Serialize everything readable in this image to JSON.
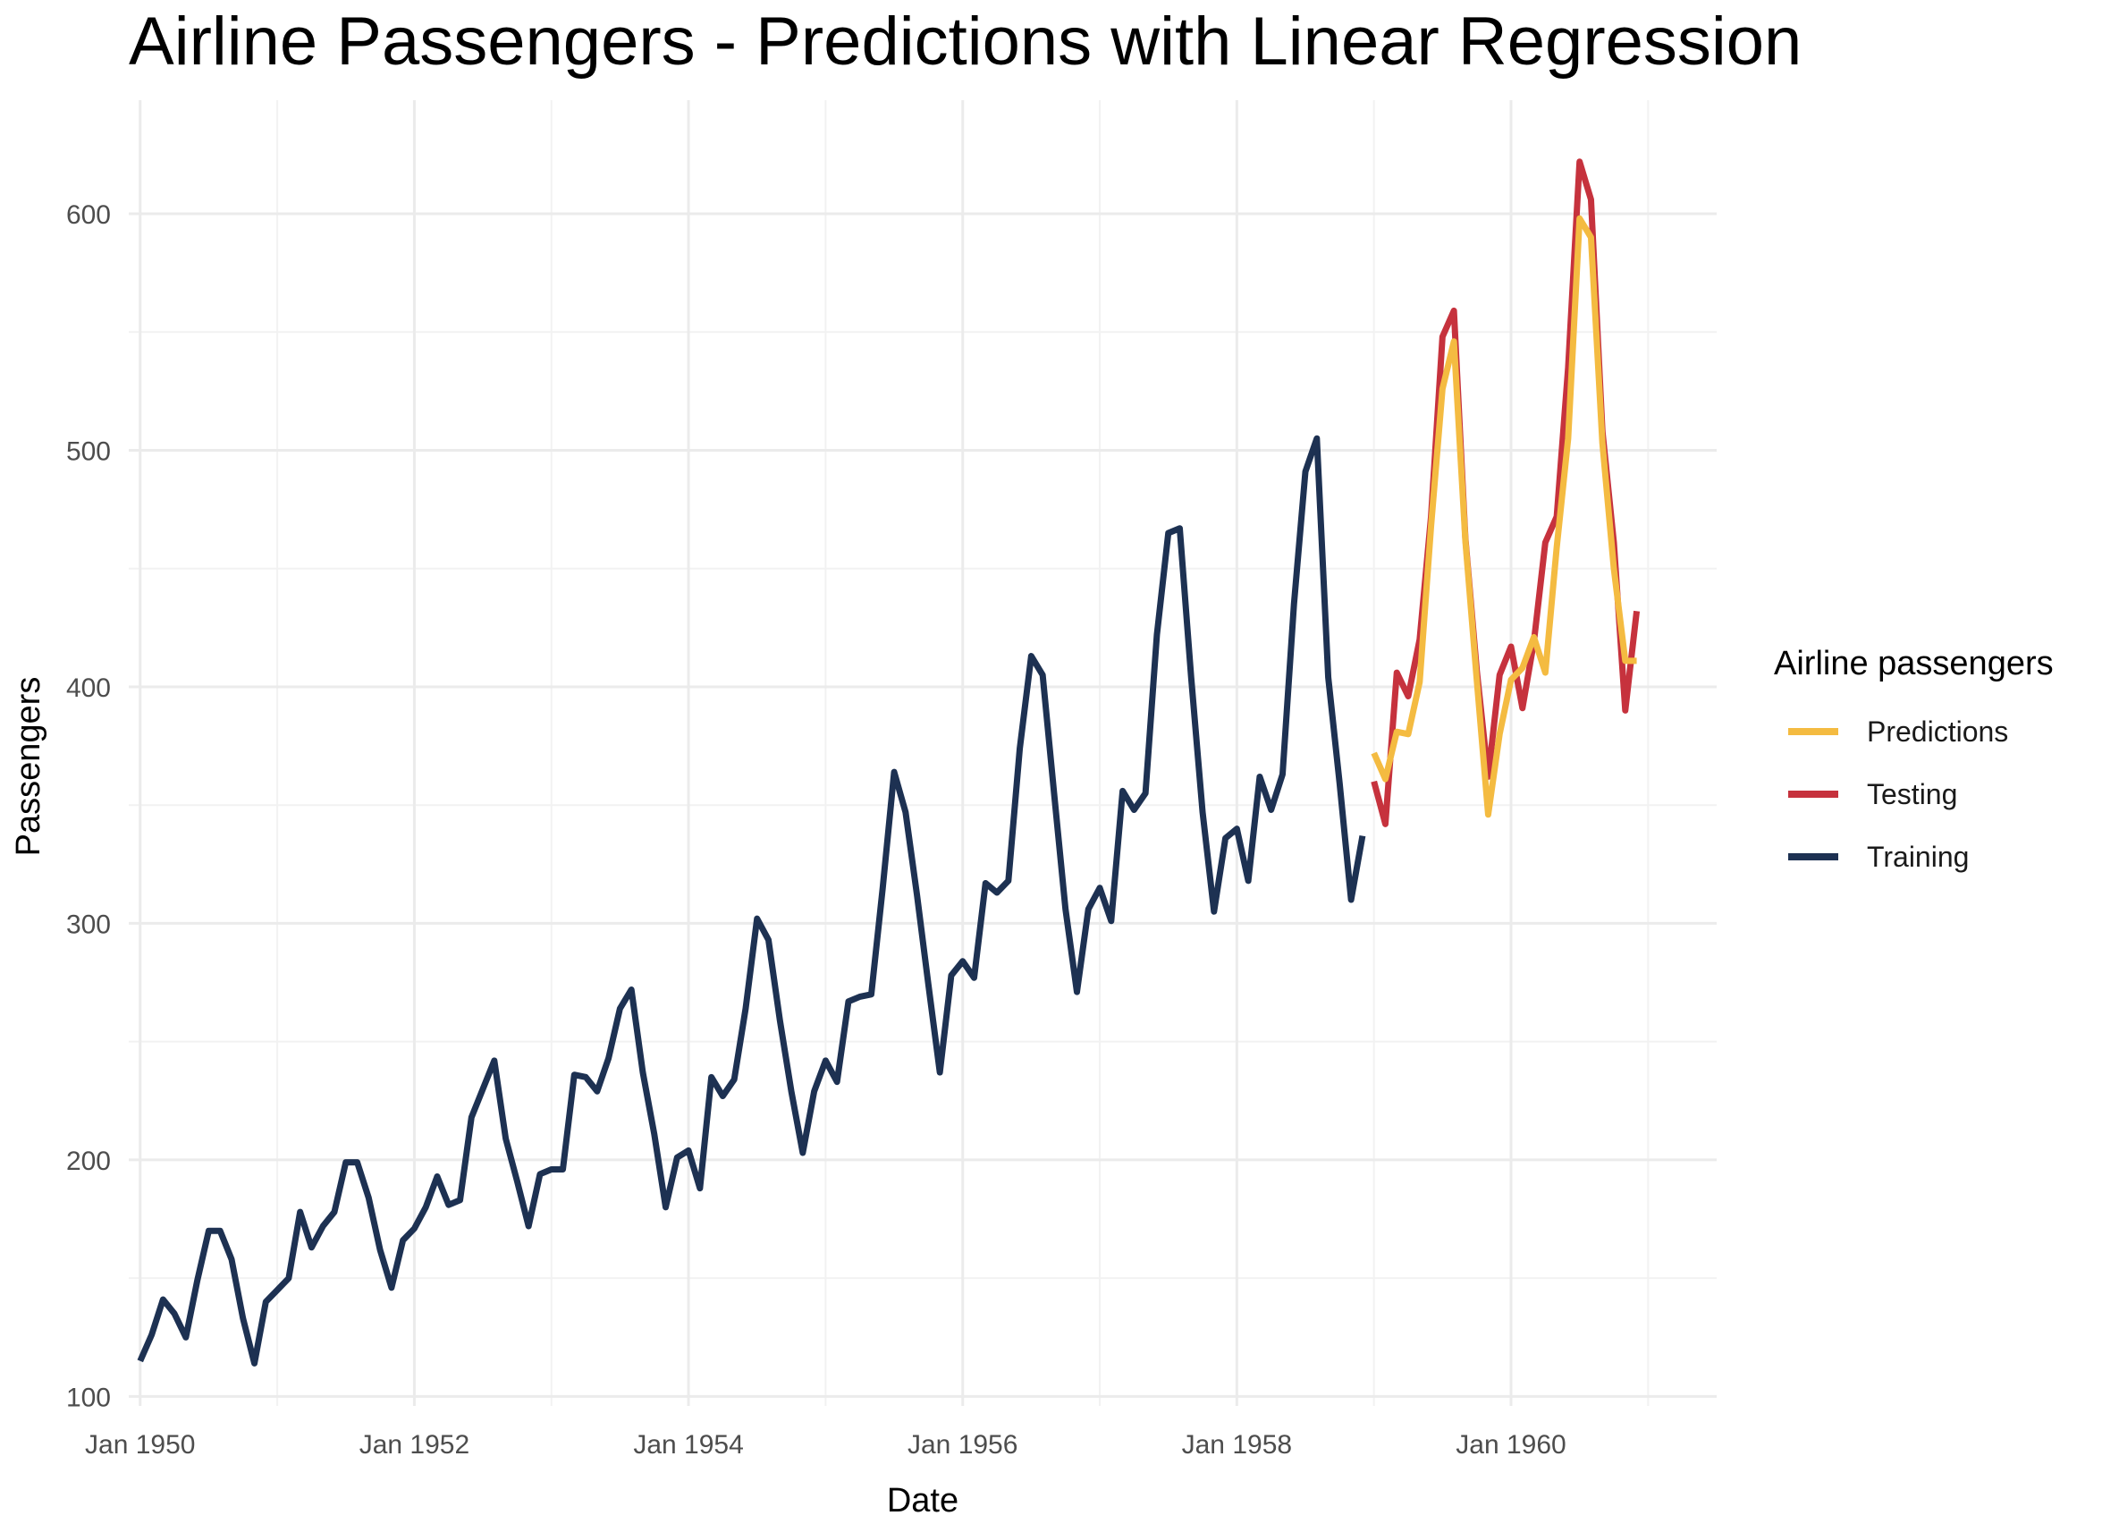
{
  "colors": {
    "Predictions": "#f4bb41",
    "Testing": "#c6323d",
    "Training": "#1d3152",
    "grid": "#ebebeb"
  },
  "chart_data": {
    "type": "line",
    "title": "Airline Passengers - Predictions with Linear Regression",
    "xlabel": "Date",
    "ylabel": "Passengers",
    "xlim": [
      "1949-12",
      "1961-07"
    ],
    "ylim": [
      96,
      648
    ],
    "x_ticks": [
      {
        "date": "1950-01",
        "label": "Jan 1950"
      },
      {
        "date": "1952-01",
        "label": "Jan 1952"
      },
      {
        "date": "1954-01",
        "label": "Jan 1954"
      },
      {
        "date": "1956-01",
        "label": "Jan 1956"
      },
      {
        "date": "1958-01",
        "label": "Jan 1958"
      },
      {
        "date": "1960-01",
        "label": "Jan 1960"
      }
    ],
    "x_minor_ticks": [
      "1951-01",
      "1953-01",
      "1955-01",
      "1957-01",
      "1959-01",
      "1961-01"
    ],
    "y_ticks": [
      100,
      200,
      300,
      400,
      500,
      600
    ],
    "y_minor_ticks": [
      150,
      250,
      350,
      450,
      550
    ],
    "grid": true,
    "legend": {
      "title": "Airline passengers",
      "position": "right",
      "entries": [
        "Predictions",
        "Testing",
        "Training"
      ]
    },
    "series": [
      {
        "name": "Training",
        "start": "1950-01",
        "frequency": "monthly",
        "values": [
          115,
          126,
          141,
          135,
          125,
          149,
          170,
          170,
          158,
          133,
          114,
          140,
          145,
          150,
          178,
          163,
          172,
          178,
          199,
          199,
          184,
          162,
          146,
          166,
          171,
          180,
          193,
          181,
          183,
          218,
          230,
          242,
          209,
          191,
          172,
          194,
          196,
          196,
          236,
          235,
          229,
          243,
          264,
          272,
          237,
          211,
          180,
          201,
          204,
          188,
          235,
          227,
          234,
          264,
          302,
          293,
          259,
          229,
          203,
          229,
          242,
          233,
          267,
          269,
          270,
          315,
          364,
          347,
          312,
          274,
          237,
          278,
          284,
          277,
          317,
          313,
          318,
          374,
          413,
          405,
          355,
          306,
          271,
          306,
          315,
          301,
          356,
          348,
          355,
          422,
          465,
          467,
          404,
          347,
          305,
          336,
          340,
          318,
          362,
          348,
          363,
          435,
          491,
          505,
          404,
          359,
          310,
          337
        ]
      },
      {
        "name": "Testing",
        "start": "1959-01",
        "frequency": "monthly",
        "values": [
          360,
          342,
          406,
          396,
          420,
          472,
          548,
          559,
          463,
          407,
          362,
          405,
          417,
          391,
          419,
          461,
          472,
          535,
          622,
          606,
          508,
          461,
          390,
          432
        ]
      },
      {
        "name": "Predictions",
        "start": "1959-01",
        "frequency": "monthly",
        "values": [
          372,
          361,
          381,
          380,
          402,
          468,
          526,
          546,
          462,
          403,
          346,
          380,
          403,
          408,
          421,
          406,
          459,
          505,
          598,
          590,
          503,
          450,
          411,
          411
        ]
      }
    ]
  }
}
